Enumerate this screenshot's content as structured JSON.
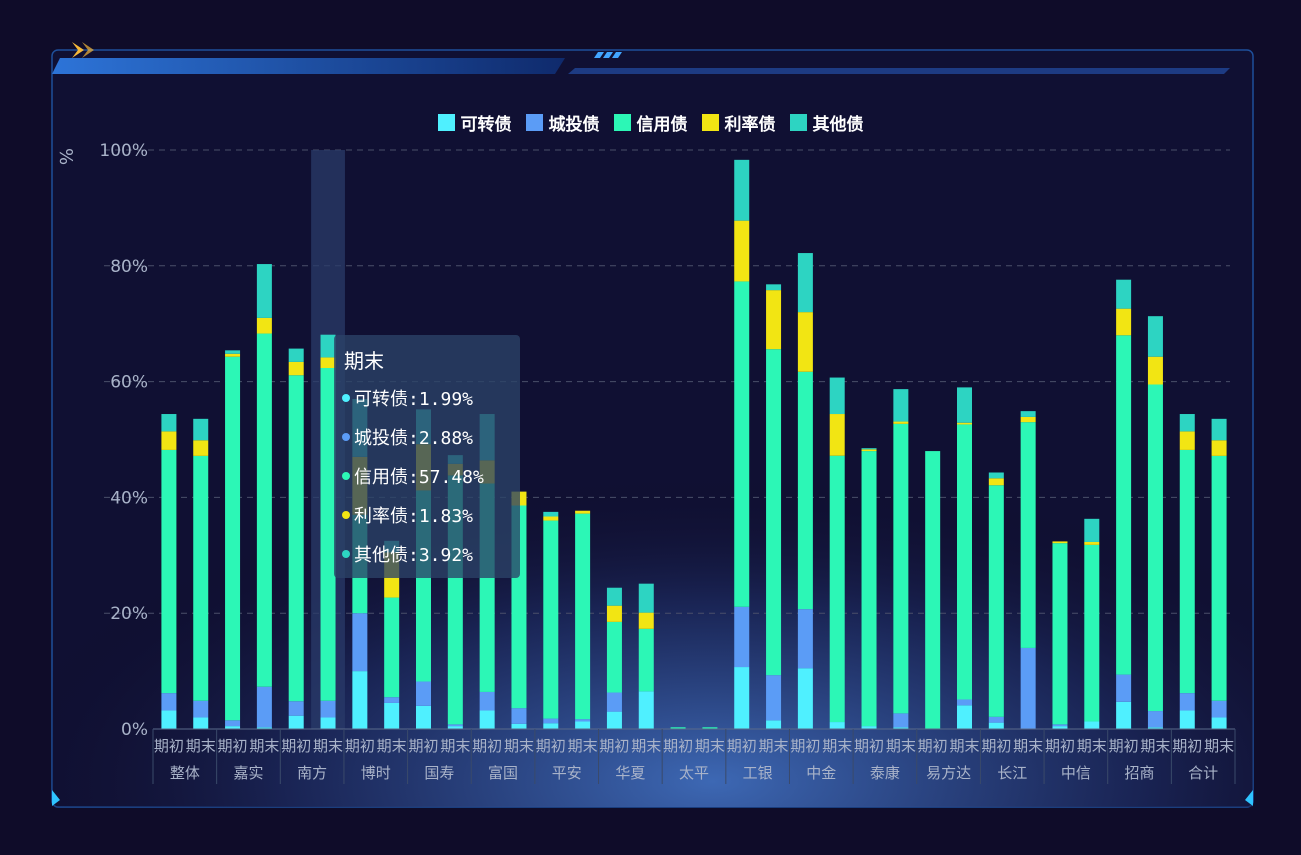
{
  "legend_title": "",
  "unit_label": "%",
  "colors": {
    "background": "#0f0c29",
    "panel_border": "#1e4f9a",
    "axis_text": "#a9b3c9",
    "grid": "#4a4f6a",
    "highlight": "#2a3b6a"
  },
  "legend": [
    {
      "label": "可转债",
      "color": "#4ff0ff"
    },
    {
      "label": "城投债",
      "color": "#5b9cf6"
    },
    {
      "label": "信用债",
      "color": "#2cf7b6"
    },
    {
      "label": "利率债",
      "color": "#f2e513"
    },
    {
      "label": "其他债",
      "color": "#2dd4c2"
    }
  ],
  "tooltip": {
    "title": "期末",
    "rows": [
      {
        "text": "可转债:1.99%",
        "color": "#4ff0ff"
      },
      {
        "text": "城投债:2.88%",
        "color": "#5b9cf6"
      },
      {
        "text": "信用债:57.48%",
        "color": "#2cf7b6"
      },
      {
        "text": "利率债:1.83%",
        "color": "#f2e513"
      },
      {
        "text": "其他债:3.92%",
        "color": "#2dd4c2"
      }
    ]
  },
  "chart_data": {
    "type": "bar",
    "stacked": true,
    "ylabel": "%",
    "ylim": [
      0,
      100
    ],
    "yticks": [
      "0%",
      "20%",
      "40%",
      "60%",
      "80%",
      "100%"
    ],
    "grid": true,
    "legend_position": "top-center",
    "groups": [
      "整体",
      "嘉实",
      "南方",
      "博时",
      "国寿",
      "富国",
      "平安",
      "华夏",
      "太平",
      "工银",
      "中金",
      "泰康",
      "易方达",
      "长江",
      "中信",
      "招商",
      "合计"
    ],
    "sub_categories": [
      "期初",
      "期末"
    ],
    "highlighted": {
      "group": "南方",
      "sub": "期末"
    },
    "series": [
      {
        "name": "可转债",
        "values": [
          3.2,
          1.99,
          0.5,
          0.3,
          2.3,
          1.99,
          10.0,
          4.5,
          4.0,
          0.5,
          3.2,
          0.9,
          1.0,
          1.3,
          3.0,
          6.5,
          0,
          0,
          10.7,
          1.5,
          10.5,
          1.2,
          0.5,
          0.3,
          0,
          4.1,
          1.1,
          0,
          0.5,
          1.3,
          4.7,
          0.3,
          3.2,
          1.99
        ]
      },
      {
        "name": "城投债",
        "values": [
          3.0,
          2.88,
          1.0,
          7.0,
          2.5,
          2.88,
          10.0,
          1.0,
          4.2,
          0.3,
          3.2,
          2.7,
          0.8,
          0.4,
          3.3,
          0,
          0,
          0,
          10.4,
          7.8,
          10.2,
          0,
          0,
          2.4,
          0,
          1.0,
          1.0,
          14.0,
          0.3,
          0,
          4.7,
          2.8,
          3.0,
          2.88
        ]
      },
      {
        "name": "信用债",
        "values": [
          42.0,
          42.3,
          62.8,
          61.0,
          56.3,
          57.48,
          17.0,
          17.2,
          33.0,
          43.0,
          36.0,
          35.0,
          34.2,
          35.5,
          12.2,
          10.8,
          0.3,
          0.3,
          56.2,
          56.3,
          41.0,
          46.0,
          47.5,
          50.0,
          48.0,
          47.5,
          40.0,
          39.0,
          31.3,
          30.5,
          58.6,
          56.4,
          42.0,
          42.3
        ]
      },
      {
        "name": "利率债",
        "values": [
          3.2,
          2.7,
          0.5,
          2.7,
          2.3,
          1.83,
          10.0,
          7.8,
          8.0,
          2.0,
          4.0,
          2.4,
          0.7,
          0.5,
          2.8,
          2.8,
          0,
          0,
          10.5,
          10.2,
          10.3,
          7.2,
          0.3,
          0.4,
          0,
          0.3,
          1.2,
          0.9,
          0.3,
          0.5,
          4.6,
          4.8,
          3.2,
          2.7
        ]
      },
      {
        "name": "其他债",
        "values": [
          3.0,
          3.7,
          0.6,
          9.3,
          2.3,
          3.92,
          10.0,
          2.0,
          6.0,
          1.5,
          8.0,
          0,
          0.8,
          0,
          3.1,
          5.0,
          0,
          0,
          10.5,
          1.0,
          10.2,
          6.3,
          0.2,
          5.6,
          0,
          6.1,
          1.0,
          1.0,
          0,
          4.0,
          5.0,
          7.0,
          3.0,
          3.7
        ]
      }
    ]
  }
}
